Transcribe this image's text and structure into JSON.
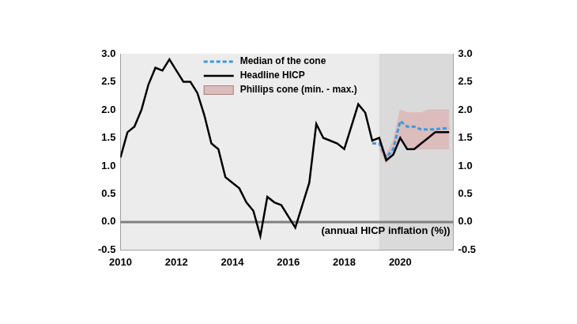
{
  "chart_data": {
    "type": "line",
    "annotation": "(annual HICP inflation (%))",
    "x": [
      2010,
      2010.25,
      2010.5,
      2010.75,
      2011,
      2011.25,
      2011.5,
      2011.75,
      2012,
      2012.25,
      2012.5,
      2012.75,
      2013,
      2013.25,
      2013.5,
      2013.75,
      2014,
      2014.25,
      2014.5,
      2014.75,
      2015,
      2015.25,
      2015.5,
      2015.75,
      2016,
      2016.25,
      2016.5,
      2016.75,
      2017,
      2017.25,
      2017.5,
      2017.75,
      2018,
      2018.25,
      2018.5,
      2018.75,
      2019,
      2019.25,
      2019.5,
      2019.75,
      2020,
      2020.25,
      2020.5,
      2020.75,
      2021,
      2021.25,
      2021.5,
      2021.75
    ],
    "series": [
      {
        "name": "Median of the cone",
        "color": "#3a9ad9",
        "line_style": "dashed",
        "values": [
          null,
          null,
          null,
          null,
          null,
          null,
          null,
          null,
          null,
          null,
          null,
          null,
          null,
          null,
          null,
          null,
          null,
          null,
          null,
          null,
          null,
          null,
          null,
          null,
          null,
          null,
          null,
          null,
          null,
          null,
          null,
          null,
          null,
          null,
          null,
          null,
          1.4,
          1.4,
          1.15,
          1.3,
          1.8,
          1.7,
          1.7,
          1.65,
          1.65,
          1.65,
          1.67,
          1.67
        ]
      },
      {
        "name": "Headline HICP",
        "color": "#000000",
        "line_style": "solid",
        "values": [
          1.15,
          1.6,
          1.7,
          2.0,
          2.45,
          2.75,
          2.7,
          2.9,
          2.7,
          2.5,
          2.5,
          2.3,
          1.9,
          1.4,
          1.3,
          0.8,
          0.7,
          0.6,
          0.35,
          0.2,
          -0.25,
          0.45,
          0.35,
          0.3,
          0.1,
          -0.1,
          0.3,
          0.7,
          1.75,
          1.5,
          1.45,
          1.4,
          1.3,
          1.7,
          2.1,
          1.95,
          1.45,
          1.5,
          1.1,
          1.2,
          1.5,
          1.3,
          1.3,
          1.4,
          1.5,
          1.6,
          1.6,
          1.6
        ]
      },
      {
        "name": "Phillips cone (min. - max.)",
        "color": "#dcbcbc",
        "type": "area",
        "min": [
          null,
          null,
          null,
          null,
          null,
          null,
          null,
          null,
          null,
          null,
          null,
          null,
          null,
          null,
          null,
          null,
          null,
          null,
          null,
          null,
          null,
          null,
          null,
          null,
          null,
          null,
          null,
          null,
          null,
          null,
          null,
          null,
          null,
          null,
          null,
          null,
          null,
          1.3,
          1.05,
          1.2,
          1.45,
          1.35,
          1.3,
          1.3,
          1.3,
          1.3,
          1.3,
          1.3
        ],
        "max": [
          null,
          null,
          null,
          null,
          null,
          null,
          null,
          null,
          null,
          null,
          null,
          null,
          null,
          null,
          null,
          null,
          null,
          null,
          null,
          null,
          null,
          null,
          null,
          null,
          null,
          null,
          null,
          null,
          null,
          null,
          null,
          null,
          null,
          null,
          null,
          null,
          null,
          1.5,
          1.2,
          1.45,
          2.0,
          1.95,
          1.95,
          1.95,
          2.0,
          2.0,
          2.0,
          2.0
        ]
      }
    ],
    "xlim": [
      2010,
      2021.9
    ],
    "xticks": [
      2010,
      2012,
      2014,
      2016,
      2018,
      2020
    ],
    "ylim": [
      -0.5,
      3.0
    ],
    "yticks": [
      -0.5,
      {
        "value": 0,
        "label": "0.0"
      },
      0.5,
      {
        "value": 1,
        "label": "1.0"
      },
      1.5,
      {
        "value": 2,
        "label": "2.0"
      },
      2.5,
      {
        "value": 3,
        "label": "3.0"
      }
    ],
    "y2lim": [
      -0.5,
      3.0
    ],
    "y2ticks": [
      -0.5,
      {
        "value": 0,
        "label": "0.0"
      },
      0.5,
      {
        "value": 1,
        "label": "1.0"
      },
      1.5,
      {
        "value": 2,
        "label": "2.0"
      },
      2.5,
      {
        "value": 3,
        "label": "3.0"
      }
    ],
    "grid": false,
    "legend": "top"
  }
}
